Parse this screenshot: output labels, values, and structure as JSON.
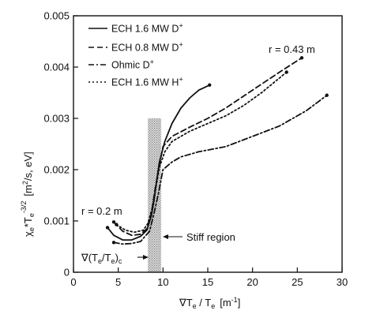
{
  "chart_data": {
    "type": "line",
    "title": "",
    "xlabel": "∇T",
    "xlabel_sub": "e",
    "xlabel_mid": " / T",
    "xlabel_sub2": "e",
    "xlabel_unit": "[m",
    "xlabel_unit_sup": "-1",
    "xlabel_unit_end": "]",
    "ylabel": "χ",
    "ylabel_sub": "e",
    "ylabel_mid": "*T",
    "ylabel_sub2": "e",
    "ylabel_sup": "-3/2",
    "ylabel_unit": "[m",
    "ylabel_unit_sup": "2",
    "ylabel_unit_end": "/s, eV]",
    "xlim": [
      0,
      30
    ],
    "ylim": [
      0,
      0.005
    ],
    "x_ticks": [
      0,
      5,
      10,
      15,
      20,
      25,
      30
    ],
    "x_tick_labels": [
      "0",
      "5",
      "10",
      "15",
      "20",
      "25",
      "30"
    ],
    "y_ticks": [
      0,
      0.001,
      0.002,
      0.003,
      0.004,
      0.005
    ],
    "y_tick_labels": [
      "0",
      "0.001",
      "0.002",
      "0.003",
      "0.004",
      "0.005"
    ],
    "grid": false,
    "legend_position": "top-left",
    "series": [
      {
        "name": "ECH 1.6 MW D",
        "name_sup": "+",
        "style": "solid",
        "x": [
          3.8,
          4.5,
          5.5,
          6.5,
          7.5,
          8.2,
          8.7,
          9.0,
          9.3,
          9.6,
          10.2,
          11.0,
          12.0,
          13.0,
          14.0,
          15.2
        ],
        "y": [
          0.00087,
          0.00072,
          0.00063,
          0.00063,
          0.0007,
          0.00082,
          0.0011,
          0.0014,
          0.0018,
          0.00215,
          0.00255,
          0.0029,
          0.0032,
          0.0034,
          0.00355,
          0.00365
        ]
      },
      {
        "name": "ECH 0.8 MW D",
        "name_sup": "+",
        "style": "dashed",
        "x": [
          4.5,
          5.5,
          6.5,
          7.5,
          8.2,
          8.7,
          9.1,
          9.5,
          10.0,
          11.0,
          13.0,
          15.0,
          17.0,
          20.0,
          23.0,
          25.5
        ],
        "y": [
          0.00098,
          0.0008,
          0.00072,
          0.00074,
          0.00085,
          0.00115,
          0.0016,
          0.002,
          0.00245,
          0.00265,
          0.00283,
          0.003,
          0.0032,
          0.00355,
          0.0039,
          0.00418
        ]
      },
      {
        "name": "Ohmic D",
        "name_sup": "+",
        "style": "dashdot",
        "x": [
          4.5,
          5.5,
          6.5,
          7.5,
          8.5,
          9.0,
          9.5,
          10.0,
          11.0,
          12.0,
          14.0,
          17.0,
          20.0,
          23.0,
          26.0,
          28.3
        ],
        "y": [
          0.00058,
          0.00055,
          0.00056,
          0.0006,
          0.0008,
          0.00115,
          0.00155,
          0.002,
          0.00215,
          0.00225,
          0.00235,
          0.00245,
          0.00265,
          0.00285,
          0.00315,
          0.00345
        ]
      },
      {
        "name": "ECH 1.6 MW H",
        "name_sup": "+",
        "style": "dotted",
        "x": [
          4.8,
          5.8,
          6.8,
          7.8,
          8.3,
          8.8,
          9.2,
          9.6,
          10.2,
          11.0,
          13.0,
          15.0,
          17.0,
          19.0,
          21.0,
          23.8
        ],
        "y": [
          0.00093,
          0.00082,
          0.00078,
          0.00082,
          0.00095,
          0.00125,
          0.00165,
          0.00205,
          0.00235,
          0.00255,
          0.00275,
          0.0029,
          0.00305,
          0.00325,
          0.0035,
          0.0039
        ]
      }
    ],
    "annotations": {
      "r_outer": "r = 0.43 m",
      "r_inner": "r = 0.2 m",
      "stiff_region": "Stiff region",
      "critical_label": "∇(T",
      "critical_sub1": "e",
      "critical_mid": "/T",
      "critical_sub2": "e",
      "critical_end": ")",
      "critical_sub3": "c"
    },
    "stiff_band_x": [
      8.3,
      9.8
    ],
    "stiff_band_ymax": 0.003,
    "colors": {
      "line": "#111111",
      "band": "#bdbdbd"
    }
  }
}
